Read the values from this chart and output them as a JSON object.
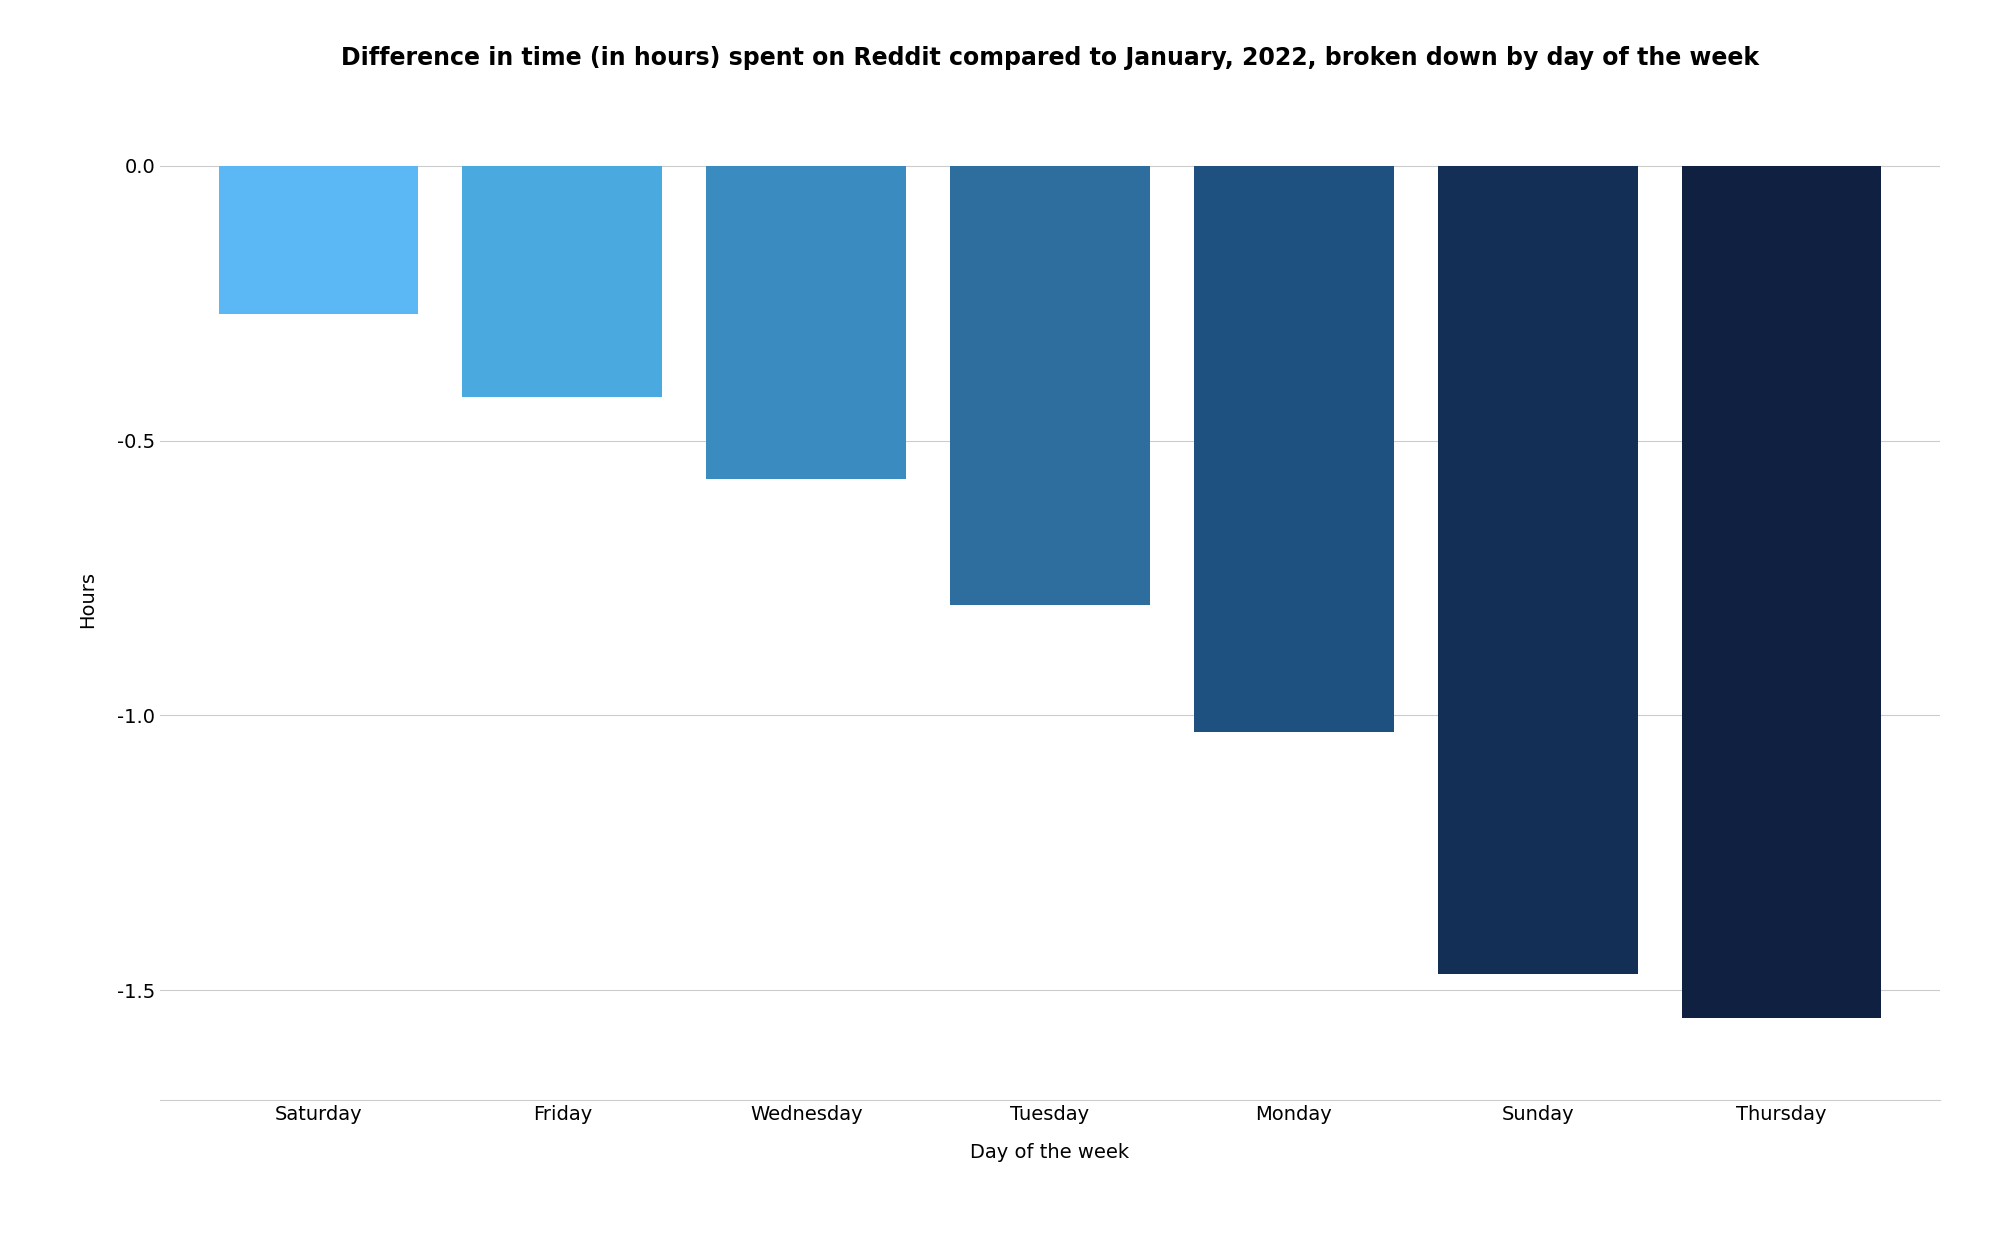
{
  "title": "Difference in time (in hours) spent on Reddit compared to January, 2022, broken down by day of the week",
  "xlabel": "Day of the week",
  "ylabel": "Hours",
  "categories": [
    "Saturday",
    "Friday",
    "Wednesday",
    "Tuesday",
    "Monday",
    "Sunday",
    "Thursday"
  ],
  "values": [
    -0.27,
    -0.42,
    -0.57,
    -0.8,
    -1.03,
    -1.47,
    -1.55
  ],
  "bar_colors": [
    "#5BB8F5",
    "#4AAAE0",
    "#3A8CC0",
    "#2E6E9E",
    "#1E5080",
    "#132F55",
    "#0F2040"
  ],
  "ylim": [
    -1.7,
    0.12
  ],
  "yticks": [
    0.0,
    -0.5,
    -1.0,
    -1.5
  ],
  "background_color": "#ffffff",
  "grid_color": "#cccccc",
  "title_fontsize": 17,
  "label_fontsize": 14,
  "tick_fontsize": 14,
  "bar_width": 0.82
}
